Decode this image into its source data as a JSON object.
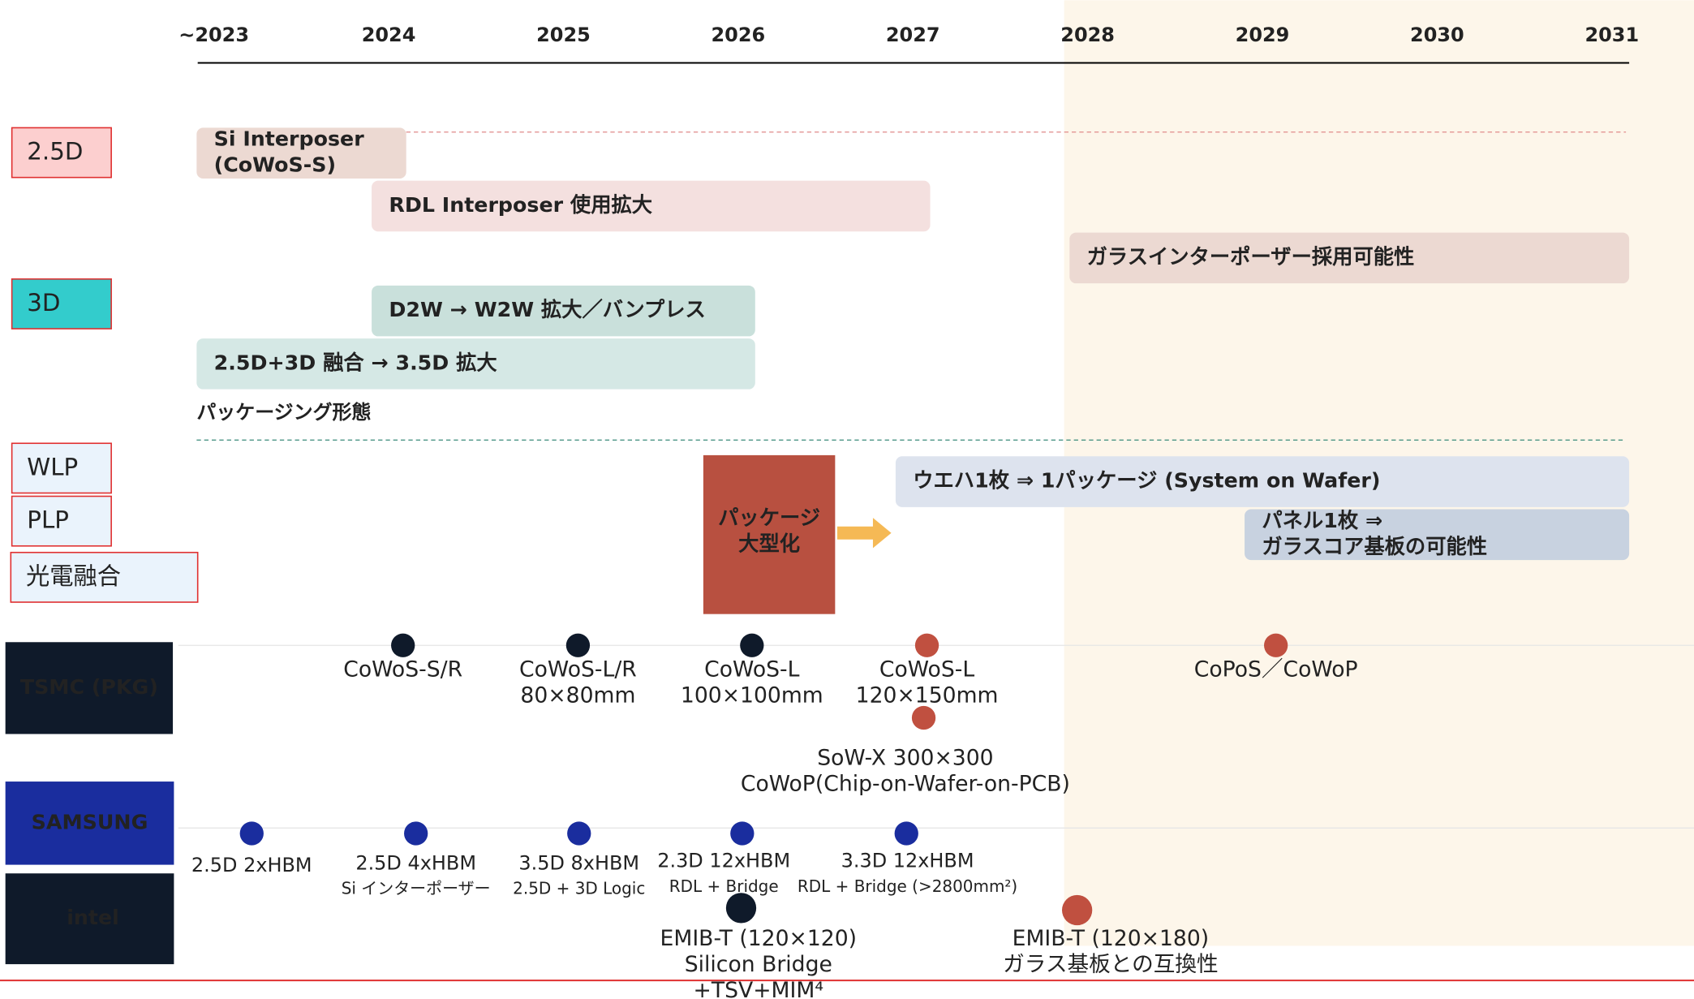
{
  "years": [
    "~2023",
    "2024",
    "2025",
    "2026",
    "2027",
    "2028",
    "2029",
    "2030",
    "2031"
  ],
  "categories": [
    "2.5D",
    "3D",
    "WLP",
    "PLP",
    "光電融合"
  ],
  "bars": [
    {
      "lines": [
        "Si Interposer",
        "(CoWoS-S)"
      ]
    },
    {
      "lines": [
        "RDL Interposer 使用拡大"
      ]
    },
    {
      "lines": [
        "ガラスインターポーザー採用可能性"
      ]
    },
    {
      "lines": [
        "D2W → W2W 拡大／バンプレス"
      ]
    },
    {
      "lines": [
        "2.5D+3D 融合 → 3.5D 拡大"
      ]
    },
    {
      "lines": [
        "ウエハ1枚 ⇒ 1パッケージ (System on Wafer)"
      ]
    },
    {
      "lines": [
        "パネル1枚 ⇒",
        "ガラスコア基板の可能性"
      ]
    }
  ],
  "section_label": "パッケージング形態",
  "callout": [
    "パッケージ",
    "大型化"
  ],
  "companies": [
    "TSMC (PKG)",
    "SAMSUNG",
    "intel"
  ],
  "milestones": [
    {
      "company": 0,
      "lines": [
        "CoWoS-S/R"
      ]
    },
    {
      "company": 0,
      "lines": [
        "CoWoS-L/R",
        "80×80mm"
      ]
    },
    {
      "company": 0,
      "lines": [
        "CoWoS-L",
        "100×100mm"
      ]
    },
    {
      "company": 0,
      "lines": [
        "CoWoS-L",
        "120×150mm"
      ]
    },
    {
      "company": 0,
      "lines": [
        "SoW-X 300×300",
        "CoWoP(Chip-on-Wafer-on-PCB)"
      ]
    },
    {
      "company": 0,
      "lines": [
        "CoPoS／CoWoP"
      ]
    },
    {
      "company": 1,
      "lines": [
        "2.5D 2xHBM"
      ]
    },
    {
      "company": 1,
      "lines": [
        "2.5D 4xHBM",
        "Si インターポーザー"
      ]
    },
    {
      "company": 1,
      "lines": [
        "3.5D 8xHBM",
        "2.5D + 3D Logic"
      ]
    },
    {
      "company": 1,
      "lines": [
        "2.3D 12xHBM",
        "RDL + Bridge"
      ]
    },
    {
      "company": 1,
      "lines": [
        "3.3D 12xHBM",
        "RDL + Bridge (>2800mm²)"
      ]
    },
    {
      "company": 2,
      "lines": [
        "EMIB-T (120×120)",
        "Silicon Bridge",
        "+TSV+MIM⁴"
      ]
    },
    {
      "company": 2,
      "lines": [
        "EMIB-T (120×180)",
        "ガラス基板との互換性"
      ]
    }
  ]
}
